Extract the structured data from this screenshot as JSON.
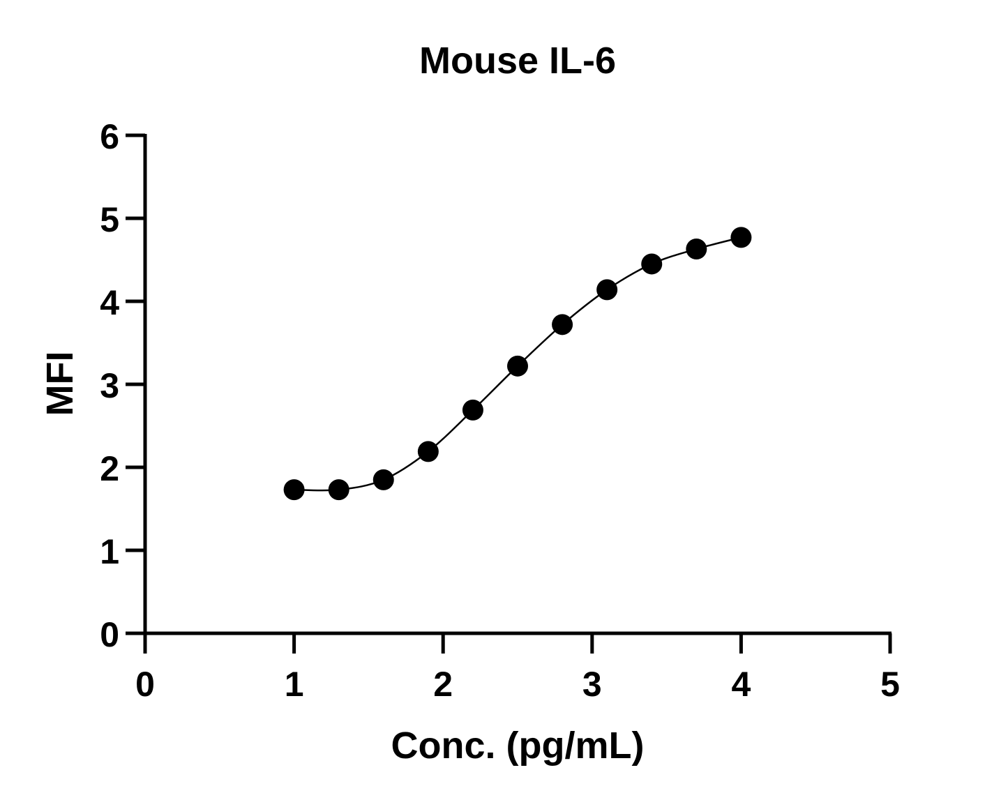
{
  "chart_data": {
    "type": "scatter",
    "title": "Mouse IL-6",
    "xlabel": "Conc. (pg/mL)",
    "ylabel": "MFI",
    "xlim": [
      0,
      5
    ],
    "ylim": [
      0,
      6
    ],
    "xticks": [
      "0",
      "1",
      "2",
      "3",
      "4",
      "5"
    ],
    "yticks": [
      "0",
      "1",
      "2",
      "3",
      "4",
      "5",
      "6"
    ],
    "grid": false,
    "legend": "none",
    "connect_points": true,
    "marker_color": "#000000",
    "line_color": "#000000",
    "x": [
      1.0,
      1.3,
      1.6,
      1.9,
      2.2,
      2.5,
      2.8,
      3.1,
      3.4,
      3.7,
      4.0
    ],
    "y": [
      1.73,
      1.73,
      1.85,
      2.19,
      2.69,
      3.22,
      3.72,
      4.14,
      4.45,
      4.63,
      4.77
    ]
  }
}
